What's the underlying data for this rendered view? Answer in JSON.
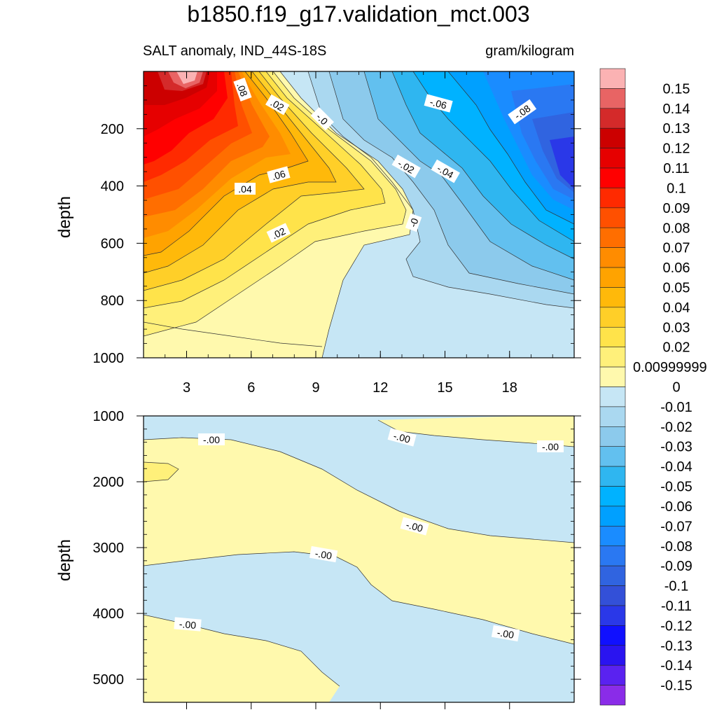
{
  "chart_data": [
    {
      "type": "heatmap",
      "title": "b1850.f19_g17.validation_mct.003",
      "subtitle_left": "SALT anomaly, IND_44S-18S",
      "subtitle_right": "gram/kilogram",
      "ylabel": "depth",
      "xlim": [
        1,
        21
      ],
      "ylim": [
        1000,
        0
      ],
      "x_ticks": [
        3,
        6,
        9,
        12,
        15,
        18
      ],
      "y_ticks": [
        200,
        400,
        600,
        800,
        1000
      ],
      "contour_labels": [
        ".08",
        ".02",
        "-.0",
        "-.06",
        "-.08",
        ".06",
        ".04",
        "-.02",
        "-.04",
        "-0",
        ".02"
      ]
    },
    {
      "type": "heatmap",
      "ylabel": "depth",
      "xlim": [
        1,
        21
      ],
      "ylim": [
        5350,
        1000
      ],
      "y_ticks": [
        1000,
        2000,
        3000,
        4000,
        5000
      ],
      "contour_labels": [
        "-.00",
        "-.00",
        "-.00",
        "-.00",
        "-.00",
        "-.00",
        "-.00"
      ]
    }
  ],
  "colorbar": {
    "labels": [
      "0.15",
      "0.14",
      "0.13",
      "0.12",
      "0.11",
      "0.1",
      "0.09",
      "0.08",
      "0.07",
      "0.06",
      "0.05",
      "0.04",
      "0.03",
      "0.02",
      "0.00999999",
      "0",
      "-0.01",
      "-0.02",
      "-0.03",
      "-0.04",
      "-0.05",
      "-0.06",
      "-0.07",
      "-0.08",
      "-0.09",
      "-0.1",
      "-0.11",
      "-0.12",
      "-0.13",
      "-0.14",
      "-0.15"
    ],
    "colors": [
      "#fbb2b3",
      "#e86464",
      "#d42a2a",
      "#cc0000",
      "#e60000",
      "#ff0000",
      "#ff2a00",
      "#ff5000",
      "#ff6e00",
      "#ff8c00",
      "#ffa300",
      "#ffb90a",
      "#ffcf28",
      "#ffe34a",
      "#fff07a",
      "#fff9ad",
      "#c6e6f5",
      "#aad8f0",
      "#8ccaec",
      "#62c0ef",
      "#2fb6f0",
      "#00b2ff",
      "#00a0ff",
      "#1a8cff",
      "#2a78f2",
      "#3064e0",
      "#3350d8",
      "#2a38e8",
      "#1010ff",
      "#2a14f0",
      "#5a22f0",
      "#8a2ce8"
    ]
  }
}
